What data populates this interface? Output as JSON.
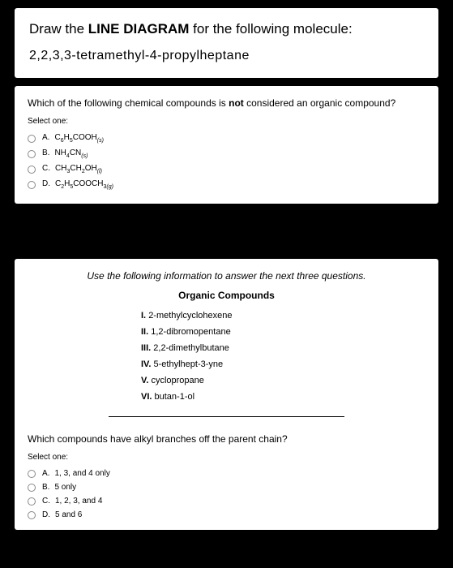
{
  "q1": {
    "title_pre": "Draw the ",
    "title_bold": "LINE DIAGRAM",
    "title_post": " for the following molecule:",
    "molecule": "2,2,3,3-tetramethyl-4-propylheptane"
  },
  "q2": {
    "text_pre": "Which of the following chemical compounds is ",
    "text_bold": "not",
    "text_post": " considered an organic compound?",
    "select": "Select one:",
    "options": [
      {
        "letter": "A.",
        "formula_html": "C<span class='sub'>6</span>H<span class='sub'>5</span>COOH<span class='subit'>(s)</span>"
      },
      {
        "letter": "B.",
        "formula_html": "NH<span class='sub'>4</span>CN<span class='subit'>(s)</span>"
      },
      {
        "letter": "C.",
        "formula_html": "CH<span class='sub'>3</span>CH<span class='sub'>2</span>OH<span class='subit'>(l)</span>"
      },
      {
        "letter": "D.",
        "formula_html": "C<span class='sub'>2</span>H<span class='sub'>5</span>COOCH<span class='sub'>3</span><span class='subit'>(g)</span>"
      }
    ]
  },
  "info": {
    "lead": "Use the following information to answer the next three questions.",
    "heading": "Organic Compounds",
    "compounds": [
      {
        "num": "I.",
        "name": "2-methylcyclohexene"
      },
      {
        "num": "II.",
        "name": "1,2-dibromopentane"
      },
      {
        "num": "III.",
        "name": "2,2-dimethylbutane"
      },
      {
        "num": "IV.",
        "name": "5-ethylhept-3-yne"
      },
      {
        "num": "V.",
        "name": "cyclopropane"
      },
      {
        "num": "VI.",
        "name": "butan-1-ol"
      }
    ]
  },
  "q3": {
    "text": "Which compounds have alkyl branches off the parent chain?",
    "select": "Select one:",
    "options": [
      {
        "letter": "A.",
        "label": "1, 3, and 4 only"
      },
      {
        "letter": "B.",
        "label": "5 only"
      },
      {
        "letter": "C.",
        "label": "1, 2, 3, and 4"
      },
      {
        "letter": "D.",
        "label": "5 and 6"
      }
    ]
  }
}
